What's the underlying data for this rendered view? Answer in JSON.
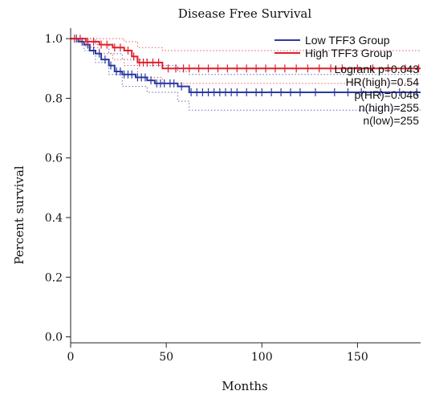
{
  "chart_data": {
    "type": "line",
    "title": "Disease Free Survival",
    "xlabel": "Months",
    "ylabel": "Percent survival",
    "xlim": [
      0,
      183
    ],
    "ylim": [
      -0.02,
      1.03
    ],
    "xticks": [
      0,
      50,
      100,
      150
    ],
    "yticks": [
      0.0,
      0.2,
      0.4,
      0.6,
      0.8,
      1.0
    ],
    "xtick_labels": [
      "0",
      "50",
      "100",
      "150"
    ],
    "ytick_labels": [
      "0.0",
      "0.2",
      "0.4",
      "0.6",
      "0.8",
      "1.0"
    ],
    "grid": false,
    "legend_position": "top-right",
    "series": [
      {
        "name": "Low TFF3 Group",
        "color": "#2b3aa0",
        "steps": [
          [
            0,
            1.0
          ],
          [
            4,
            0.99
          ],
          [
            7,
            0.98
          ],
          [
            10,
            0.96
          ],
          [
            13,
            0.95
          ],
          [
            16,
            0.93
          ],
          [
            20,
            0.91
          ],
          [
            23,
            0.89
          ],
          [
            27,
            0.88
          ],
          [
            34,
            0.87
          ],
          [
            40,
            0.86
          ],
          [
            44,
            0.85
          ],
          [
            56,
            0.84
          ],
          [
            62,
            0.82
          ],
          [
            183,
            0.82
          ]
        ],
        "ci_upper": [
          [
            0,
            1.0
          ],
          [
            7,
            1.0
          ],
          [
            13,
            0.98
          ],
          [
            20,
            0.95
          ],
          [
            27,
            0.93
          ],
          [
            40,
            0.91
          ],
          [
            56,
            0.89
          ],
          [
            62,
            0.88
          ],
          [
            183,
            0.88
          ]
        ],
        "ci_lower": [
          [
            0,
            1.0
          ],
          [
            7,
            0.96
          ],
          [
            13,
            0.92
          ],
          [
            20,
            0.88
          ],
          [
            27,
            0.84
          ],
          [
            40,
            0.82
          ],
          [
            56,
            0.79
          ],
          [
            62,
            0.76
          ],
          [
            183,
            0.76
          ]
        ],
        "censor_x": [
          3,
          6,
          9,
          12,
          15,
          18,
          21,
          24,
          26,
          28,
          30,
          32,
          35,
          37,
          39,
          42,
          45,
          47,
          49,
          52,
          54,
          58,
          63,
          66,
          69,
          72,
          75,
          78,
          81,
          84,
          87,
          92,
          97,
          100,
          105,
          110,
          115,
          120,
          128,
          138,
          145,
          152,
          162,
          172,
          181
        ]
      },
      {
        "name": "High TFF3 Group",
        "color": "#e0202a",
        "steps": [
          [
            0,
            1.0
          ],
          [
            8,
            0.99
          ],
          [
            15,
            0.98
          ],
          [
            22,
            0.97
          ],
          [
            28,
            0.96
          ],
          [
            32,
            0.94
          ],
          [
            35,
            0.92
          ],
          [
            48,
            0.9
          ],
          [
            183,
            0.9
          ]
        ],
        "ci_upper": [
          [
            0,
            1.0
          ],
          [
            15,
            1.0
          ],
          [
            28,
            0.99
          ],
          [
            35,
            0.97
          ],
          [
            48,
            0.96
          ],
          [
            183,
            0.96
          ]
        ],
        "ci_lower": [
          [
            0,
            1.0
          ],
          [
            8,
            0.97
          ],
          [
            15,
            0.95
          ],
          [
            22,
            0.93
          ],
          [
            28,
            0.91
          ],
          [
            35,
            0.87
          ],
          [
            48,
            0.85
          ],
          [
            183,
            0.85
          ]
        ],
        "censor_x": [
          2,
          5,
          9,
          12,
          16,
          19,
          23,
          26,
          30,
          33,
          36,
          38,
          40,
          43,
          46,
          51,
          55,
          59,
          62,
          67,
          72,
          77,
          82,
          87,
          92,
          97,
          102,
          107,
          112,
          118,
          124,
          130,
          136,
          142,
          150,
          158,
          166,
          175,
          182
        ]
      }
    ],
    "annotations": [
      "Logrank p=0.043",
      "HR(high)=0.54",
      "p(HR)=0.046",
      "n(high)=255",
      "n(low)=255"
    ]
  }
}
